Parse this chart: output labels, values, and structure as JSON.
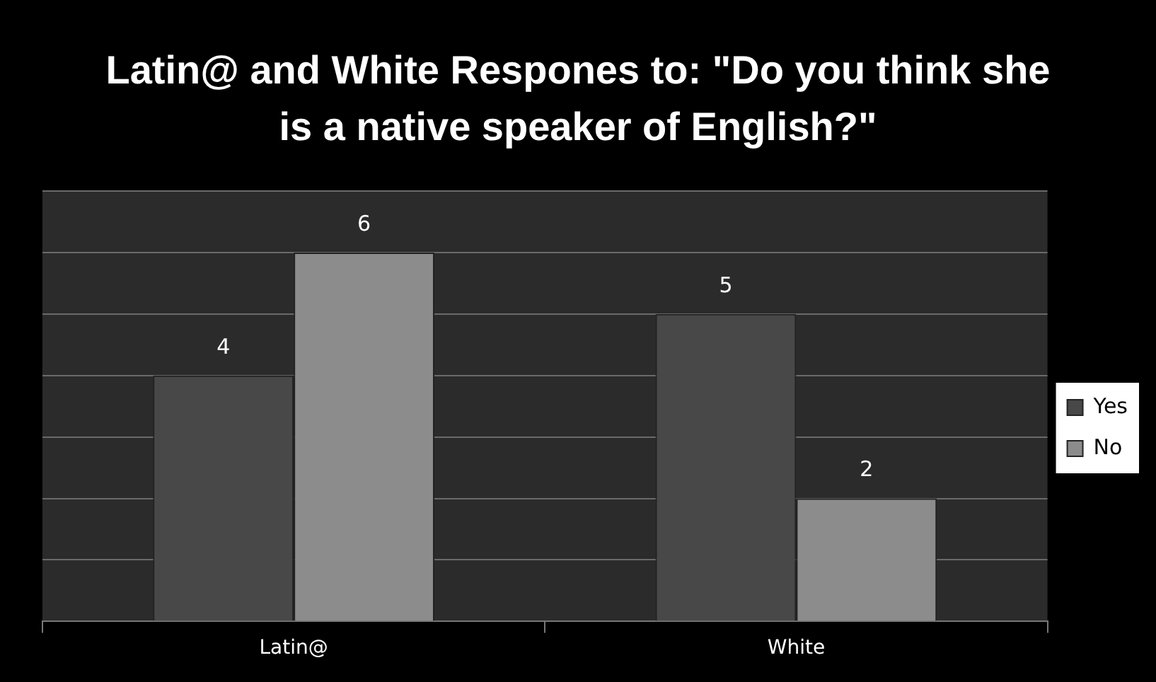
{
  "chart_data": {
    "type": "bar",
    "title": "Latin@ and White Respones to: \"Do you think she is a native speaker of English?\"",
    "categories": [
      "Latin@",
      "White"
    ],
    "series": [
      {
        "name": "Yes",
        "color": "#484848",
        "values": [
          4,
          5
        ]
      },
      {
        "name": "No",
        "color": "#8c8c8c",
        "values": [
          6,
          2
        ]
      }
    ],
    "ylim": [
      0,
      7
    ],
    "yticks": [
      {
        "value": 0,
        "label": null
      },
      {
        "value": 1,
        "label": null
      },
      {
        "value": 2,
        "label": null
      },
      {
        "value": 3,
        "label": null
      },
      {
        "value": 4,
        "label": null
      },
      {
        "value": 5,
        "label": null
      },
      {
        "value": 6,
        "label": null
      },
      {
        "value": 7,
        "label": null
      }
    ],
    "tick_labels": "x",
    "grid": "y",
    "legend": "right",
    "data_labels": true
  }
}
